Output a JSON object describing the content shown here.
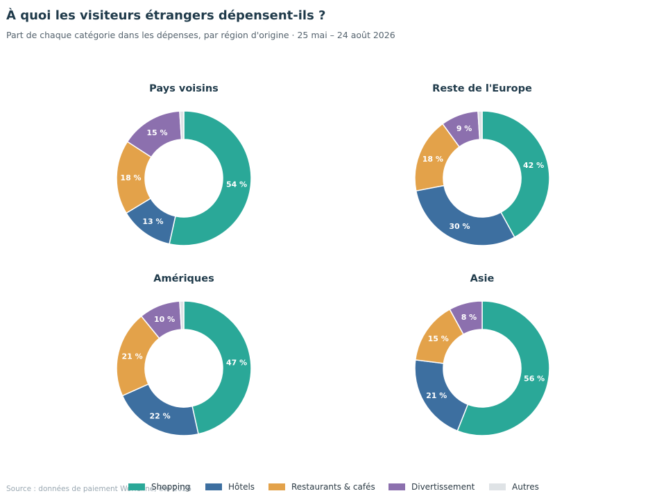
{
  "title": "À quoi les visiteurs étrangers dépensent-ils ?",
  "subtitle": "Part de chaque catégorie dans les dépenses, par région d'origine · 25 mai – 24 août 2026",
  "source": "Source : données de paiement Worldline, été 2026",
  "legend": [
    {
      "label": "Shopping",
      "color": "#2aa898"
    },
    {
      "label": "Hôtels",
      "color": "#3d6fa0"
    },
    {
      "label": "Restaurants & cafés",
      "color": "#e3a24a"
    },
    {
      "label": "Divertissement",
      "color": "#8c70ae"
    },
    {
      "label": "Autres",
      "color": "#dfe3e6"
    }
  ],
  "chart_data": [
    {
      "type": "pie",
      "title": "Pays voisins",
      "categories": [
        "Shopping",
        "Hôtels",
        "Restaurants & cafés",
        "Divertissement",
        "Autres"
      ],
      "values": [
        54,
        13,
        18,
        15,
        1
      ],
      "labels": [
        "54 %",
        "13 %",
        "18 %",
        "15 %",
        ""
      ]
    },
    {
      "type": "pie",
      "title": "Reste de l'Europe",
      "categories": [
        "Shopping",
        "Hôtels",
        "Restaurants & cafés",
        "Divertissement",
        "Autres"
      ],
      "values": [
        42,
        30,
        18,
        9,
        1
      ],
      "labels": [
        "42 %",
        "30 %",
        "18 %",
        "9 %",
        ""
      ]
    },
    {
      "type": "pie",
      "title": "Amériques",
      "categories": [
        "Shopping",
        "Hôtels",
        "Restaurants & cafés",
        "Divertissement",
        "Autres"
      ],
      "values": [
        47,
        22,
        21,
        10,
        1
      ],
      "labels": [
        "47 %",
        "22 %",
        "21 %",
        "10 %",
        ""
      ]
    },
    {
      "type": "pie",
      "title": "Asie",
      "categories": [
        "Shopping",
        "Hôtels",
        "Restaurants & cafés",
        "Divertissement",
        "Autres"
      ],
      "values": [
        56,
        21,
        15,
        8,
        0
      ],
      "labels": [
        "56 %",
        "21 %",
        "15 %",
        "8 %",
        ""
      ]
    }
  ]
}
